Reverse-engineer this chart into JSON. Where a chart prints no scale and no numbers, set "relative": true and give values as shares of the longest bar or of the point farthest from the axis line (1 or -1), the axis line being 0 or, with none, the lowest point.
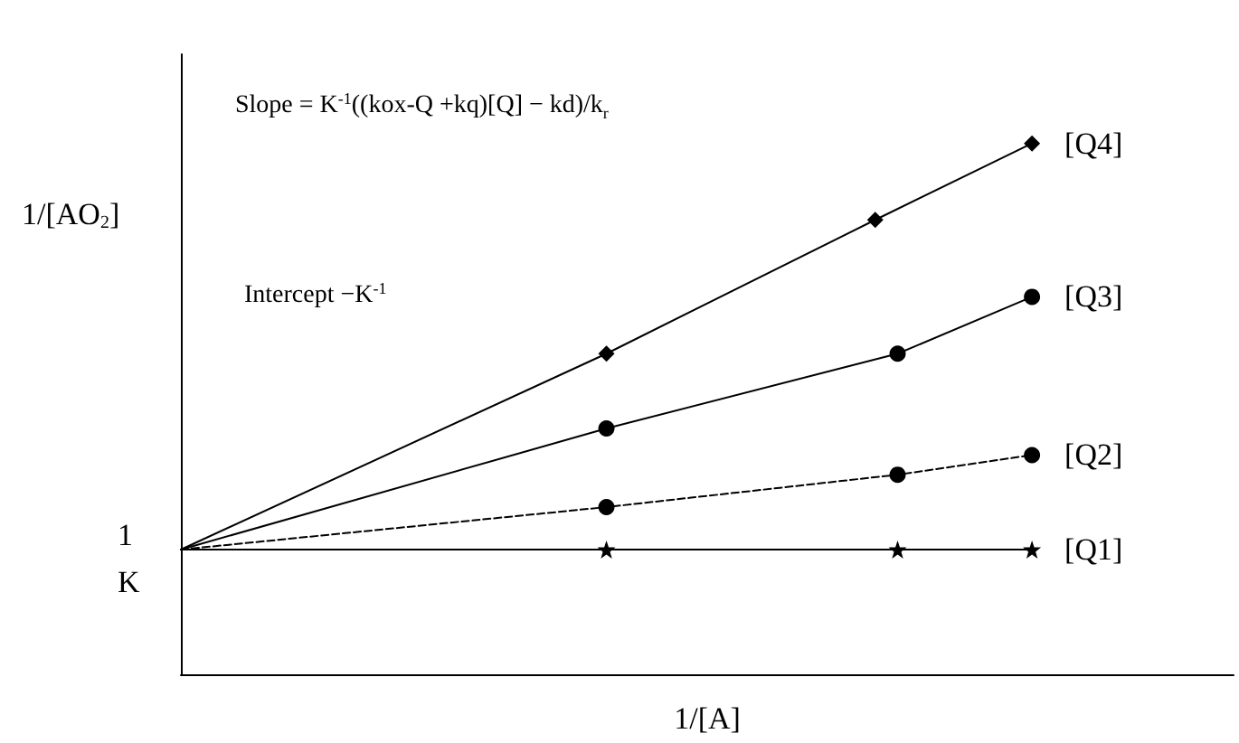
{
  "chart_data": {
    "type": "line",
    "relative": true,
    "xlabel": "1/[A]",
    "ylabel": "1/[AO$_{2}$]",
    "grid": false,
    "legend": "right",
    "annotations": [
      "Slope = K$^{-1}$((kox-Q +kq)[Q] − kd)/k$_{r}$",
      "Intercept −K$^{-1}$",
      "1\nK"
    ],
    "categories": [
      null,
      null,
      null,
      null,
      null,
      null,
      null,
      null,
      null,
      null,
      null,
      null,
      null,
      null,
      null,
      null,
      null,
      null,
      null,
      null,
      null,
      null,
      null,
      null,
      null,
      null,
      null,
      null,
      null,
      null,
      null,
      null,
      null,
      null,
      null,
      null,
      null,
      null,
      null,
      null,
      null,
      null,
      null,
      null,
      null,
      null,
      null,
      null
    ],
    "series": [
      {
        "name": "[Q4]",
        "color": "#000000",
        "marker": "diamond",
        "line_style": "solid",
        "values": [
          0.235,
          null,
          null,
          null,
          null,
          null,
          null,
          null,
          null,
          null,
          null,
          null,
          null,
          null,
          null,
          null,
          null,
          null,
          null,
          0.604,
          null,
          null,
          null,
          null,
          null,
          null,
          null,
          null,
          null,
          null,
          null,
          0.856,
          null,
          null,
          null,
          null,
          null,
          null,
          1,
          null,
          null,
          null,
          null,
          null,
          null,
          null,
          null,
          null
        ]
      },
      {
        "name": "[Q3]",
        "color": "#000000",
        "marker": "circle",
        "line_style": "solid",
        "values": [
          0.235,
          null,
          null,
          null,
          null,
          null,
          null,
          null,
          null,
          null,
          null,
          null,
          null,
          null,
          null,
          null,
          null,
          null,
          null,
          0.463,
          null,
          null,
          null,
          null,
          null,
          null,
          null,
          null,
          null,
          null,
          null,
          null,
          0.604,
          null,
          null,
          null,
          null,
          null,
          0.711,
          null,
          null,
          null,
          null,
          null,
          null,
          null,
          null,
          null
        ]
      },
      {
        "name": "[Q2]",
        "color": "#000000",
        "marker": "circle",
        "line_style": "dashed",
        "values": [
          0.235,
          null,
          null,
          null,
          null,
          null,
          null,
          null,
          null,
          null,
          null,
          null,
          null,
          null,
          null,
          null,
          null,
          null,
          null,
          0.315,
          null,
          null,
          null,
          null,
          null,
          null,
          null,
          null,
          null,
          null,
          null,
          null,
          0.376,
          null,
          null,
          null,
          null,
          null,
          0.413,
          null,
          null,
          null,
          null,
          null,
          null,
          null,
          null,
          null
        ]
      },
      {
        "name": "[Q1]",
        "color": "#000000",
        "marker": "star",
        "line_style": "solid",
        "values": [
          0.235,
          null,
          null,
          null,
          null,
          null,
          null,
          null,
          null,
          null,
          null,
          null,
          null,
          null,
          null,
          null,
          null,
          null,
          null,
          0.235,
          null,
          null,
          null,
          null,
          null,
          null,
          null,
          null,
          null,
          null,
          null,
          null,
          0.235,
          null,
          null,
          null,
          null,
          null,
          0.235,
          null,
          null,
          null,
          null,
          null,
          null,
          null,
          null,
          null
        ]
      }
    ]
  }
}
